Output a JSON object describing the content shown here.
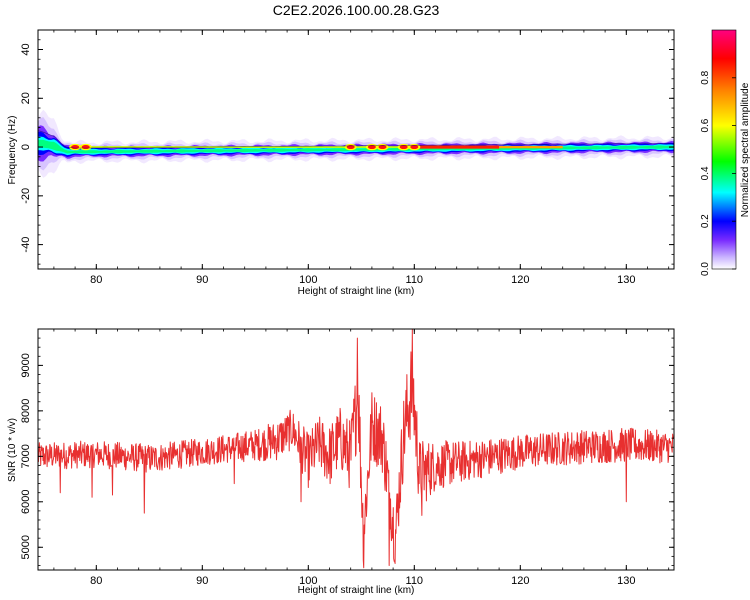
{
  "title": "C2E2.2026.100.00.28.G23",
  "chart_data": [
    {
      "type": "heatmap",
      "xlabel": "Height of straight line (km)",
      "ylabel": "Frequency (Hz)",
      "xlim": [
        74.5,
        134.5
      ],
      "ylim": [
        -50,
        48
      ],
      "xticks": [
        80,
        90,
        100,
        110,
        120,
        130
      ],
      "xtick_labels": [
        "80",
        "90",
        "100",
        "110",
        "120",
        "130"
      ],
      "yticks": [
        -40,
        -20,
        0,
        20,
        40
      ],
      "ytick_labels": [
        "-40",
        "-20",
        "0",
        "20",
        "40"
      ],
      "colorbar": {
        "label": "Normalized spectral amplitude",
        "range": [
          0,
          1
        ],
        "ticks": [
          0.0,
          0.2,
          0.4,
          0.6,
          0.8
        ],
        "tick_labels": [
          "0.0",
          "0.2",
          "0.4",
          "0.6",
          "0.8"
        ],
        "colormap": [
          "#ffffff",
          "#c9b3ff",
          "#7a2cff",
          "#0000ff",
          "#00ffff",
          "#00ff00",
          "#ffff00",
          "#ff8000",
          "#ff0000",
          "#ff0080"
        ]
      },
      "band": {
        "center_hz": 0,
        "halfwidth_hz": [
          [
            74.5,
            4
          ],
          [
            76,
            3
          ],
          [
            77,
            1.5
          ],
          [
            78,
            1.2
          ],
          [
            134.5,
            1.2
          ]
        ],
        "note_points": [
          [
            74.8,
            1.5
          ],
          [
            76,
            0.5
          ],
          [
            77.2,
            -2
          ],
          [
            134,
            0
          ]
        ]
      },
      "hot_spots_km": [
        78,
        79,
        104,
        106,
        107,
        109,
        110
      ],
      "intense_segment_km": [
        110,
        118
      ]
    },
    {
      "type": "line",
      "xlabel": "Height of straight line (km)",
      "ylabel": "SNR (10 * v/v)",
      "xlim": [
        74.5,
        134.5
      ],
      "ylim": [
        4500,
        9800
      ],
      "xticks": [
        80,
        90,
        100,
        110,
        120,
        130
      ],
      "xtick_labels": [
        "80",
        "90",
        "100",
        "110",
        "120",
        "130"
      ],
      "yticks": [
        5000,
        6000,
        7000,
        8000,
        9000
      ],
      "ytick_labels": [
        "5000",
        "6000",
        "7000",
        "8000",
        "9000"
      ],
      "color": "#e83030",
      "envelope": {
        "x": [
          74.5,
          80,
          85,
          90,
          95,
          97,
          98.5,
          100,
          101,
          102,
          103,
          104,
          104.7,
          105.2,
          106,
          107,
          108.2,
          109,
          109.8,
          110.5,
          112,
          115,
          120,
          125,
          130,
          134.5
        ],
        "base": [
          7000,
          7050,
          6950,
          7100,
          7250,
          7350,
          7600,
          6900,
          7300,
          7000,
          7400,
          7000,
          8400,
          5300,
          7700,
          7400,
          5200,
          7500,
          8600,
          6600,
          6800,
          6900,
          7100,
          7200,
          7250,
          7200
        ],
        "amp": [
          300,
          300,
          320,
          300,
          350,
          450,
          450,
          600,
          600,
          700,
          700,
          800,
          1000,
          700,
          800,
          800,
          700,
          900,
          1100,
          800,
          550,
          450,
          380,
          380,
          380,
          350
        ]
      },
      "spikes": [
        [
          104.6,
          9600
        ],
        [
          105.2,
          4550
        ],
        [
          107.6,
          4600
        ],
        [
          109.8,
          9800
        ],
        [
          76.6,
          6200
        ],
        [
          79.6,
          6100
        ],
        [
          81.5,
          6150
        ],
        [
          84.5,
          5750
        ],
        [
          93,
          6400
        ],
        [
          99.3,
          6000
        ],
        [
          110.7,
          5700
        ],
        [
          130,
          6000
        ]
      ]
    }
  ]
}
